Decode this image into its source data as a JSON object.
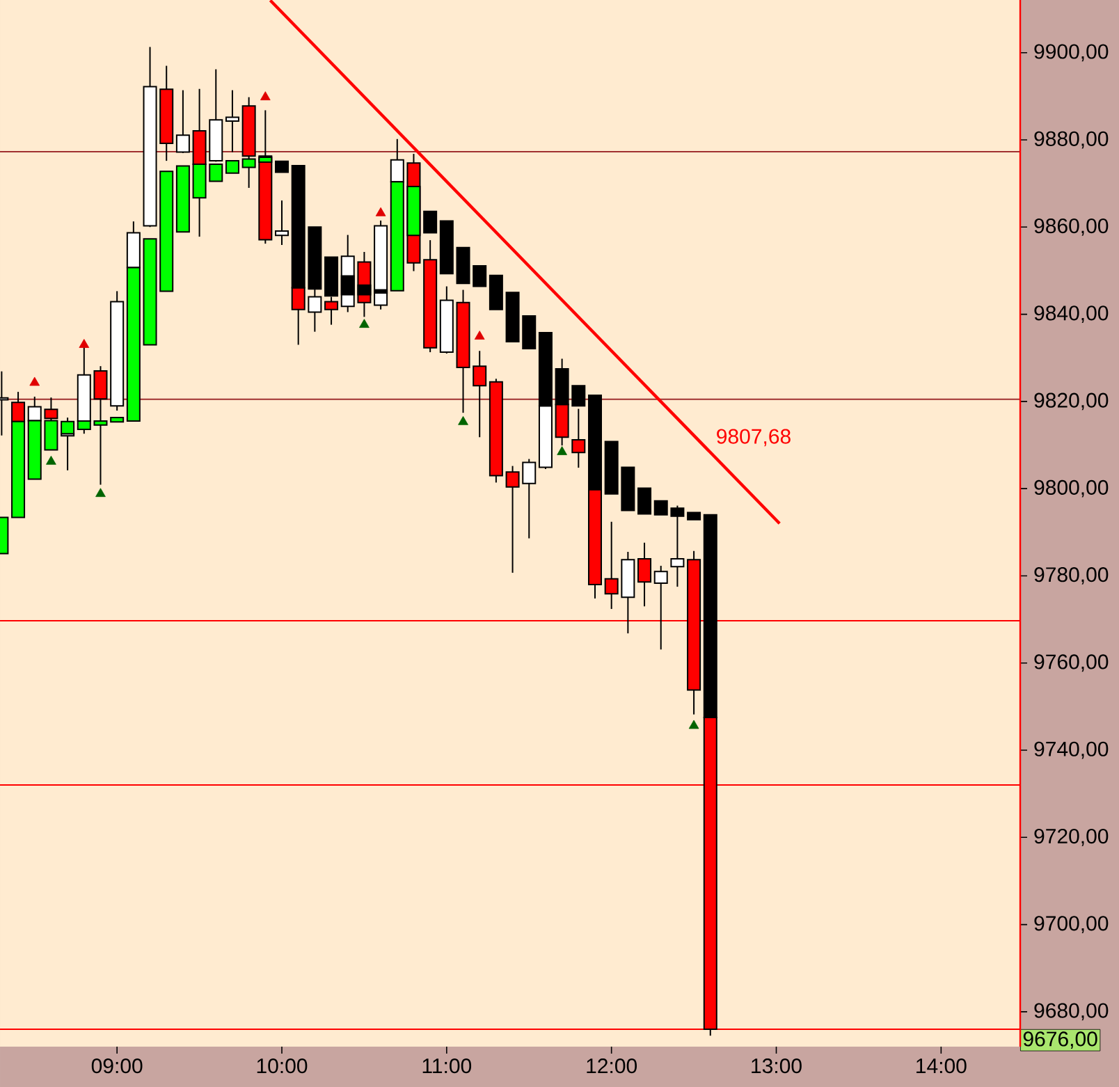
{
  "chart_data": {
    "type": "candlestick",
    "x": [
      8.3,
      8.4,
      8.5,
      8.6,
      8.7,
      8.8,
      8.9,
      9.0,
      9.1,
      9.2,
      9.3,
      9.4,
      9.5,
      9.6,
      9.7,
      9.8,
      9.9,
      10.0,
      10.1,
      10.2,
      10.3,
      10.4,
      10.5,
      10.6,
      10.7,
      10.8,
      10.9,
      11.0,
      11.1,
      11.2,
      11.3,
      11.4,
      11.5,
      11.6,
      11.7,
      11.8,
      11.9,
      12.0,
      12.1,
      12.2,
      12.3,
      12.4,
      12.5,
      12.6
    ],
    "xlim": [
      8.29,
      14.48
    ],
    "ylim": [
      9672,
      9912.1
    ],
    "xticks": [
      {
        "value": 9,
        "label": "09:00"
      },
      {
        "value": 10,
        "label": "10:00"
      },
      {
        "value": 11,
        "label": "11:00"
      },
      {
        "value": 12,
        "label": "12:00"
      },
      {
        "value": 13,
        "label": "13:00"
      },
      {
        "value": 14,
        "label": "14:00"
      }
    ],
    "yticks": [
      {
        "value": 9680,
        "label": "9680,00"
      },
      {
        "value": 9700,
        "label": "9700,00"
      },
      {
        "value": 9720,
        "label": "9720,00"
      },
      {
        "value": 9740,
        "label": "9740,00"
      },
      {
        "value": 9760,
        "label": "9760,00"
      },
      {
        "value": 9780,
        "label": "9780,00"
      },
      {
        "value": 9800,
        "label": "9800,00"
      },
      {
        "value": 9820,
        "label": "9820,00"
      },
      {
        "value": 9840,
        "label": "9840,00"
      },
      {
        "value": 9860,
        "label": "9860,00"
      },
      {
        "value": 9880,
        "label": "9880,00"
      },
      {
        "value": 9900,
        "label": "9900,00"
      }
    ],
    "series": [
      {
        "ohlc": [
          [
            9820.4,
            9826.9,
            9812.2,
            9820.8
          ],
          [
            9819.8,
            9822.2,
            9815.0,
            9815.4
          ],
          [
            9815.6,
            9821.1,
            9815.0,
            9818.8
          ],
          [
            9818.2,
            9820.9,
            9815.6,
            9816.1
          ],
          [
            9812.1,
            9816.3,
            9804.2,
            9812.6
          ],
          [
            9815.5,
            9832.5,
            9812.6,
            9826.1
          ],
          [
            9827.0,
            9828.1,
            9800.9,
            9820.6
          ],
          [
            9819.0,
            9845.3,
            9817.9,
            9842.9
          ],
          [
            9850.7,
            9861.3,
            9850.0,
            9858.7
          ],
          [
            9860.3,
            9901.3,
            9860.0,
            9892.2
          ],
          [
            9891.6,
            9897.0,
            9875.2,
            9879.2
          ],
          [
            9877.2,
            9891.4,
            9877.0,
            9881.1
          ],
          [
            9882.1,
            9891.7,
            9857.8,
            9874.4
          ],
          [
            9875.2,
            9896.2,
            9875.0,
            9884.6
          ],
          [
            9884.3,
            9891.4,
            9877.2,
            9885.2
          ],
          [
            9887.8,
            9889.8,
            9869.0,
            9876.3
          ],
          [
            9876.3,
            9886.8,
            9856.2,
            9857.1
          ],
          [
            9858.1,
            9866.1,
            9855.9,
            9859.1
          ],
          [
            9846.1,
            9846.1,
            9833.0,
            9841.1
          ],
          [
            9840.5,
            9846.0,
            9836.0,
            9844.0
          ],
          [
            9842.9,
            9844.0,
            9837.6,
            9841.1
          ],
          [
            9841.8,
            9858.2,
            9840.5,
            9853.3
          ],
          [
            9852.0,
            9854.3,
            9839.4,
            9842.7
          ],
          [
            9842.1,
            9861.5,
            9841.1,
            9860.3
          ],
          [
            9870.4,
            9880.2,
            9870.0,
            9875.4
          ],
          [
            9874.7,
            9876.8,
            9849.9,
            9851.8
          ],
          [
            9852.5,
            9857.0,
            9831.3,
            9832.3
          ],
          [
            9831.3,
            9846.4,
            9831.0,
            9843.2
          ],
          [
            9842.7,
            9845.6,
            9817.4,
            9827.8
          ],
          [
            9828.1,
            9831.6,
            9811.8,
            9823.6
          ],
          [
            9824.5,
            9825.2,
            9801.4,
            9803.0
          ],
          [
            9803.8,
            9805.2,
            9780.7,
            9800.4
          ],
          [
            9801.2,
            9806.8,
            9788.6,
            9806.0
          ],
          [
            9804.9,
            9820.0,
            9804.5,
            9819.0
          ],
          [
            9819.3,
            9829.8,
            9809.9,
            9811.8
          ],
          [
            9811.2,
            9818.3,
            9804.8,
            9808.3
          ],
          [
            9799.8,
            9799.8,
            9774.8,
            9778.0
          ],
          [
            9779.3,
            9792.4,
            9772.4,
            9775.9
          ],
          [
            9775.1,
            9785.5,
            9766.8,
            9783.7
          ],
          [
            9783.9,
            9787.6,
            9773.0,
            9778.6
          ],
          [
            9778.3,
            9782.3,
            9763.1,
            9781.0
          ],
          [
            9782.1,
            9796.1,
            9777.5,
            9783.9
          ],
          [
            9783.7,
            9785.7,
            9748.2,
            9753.8
          ],
          [
            9747.5,
            9747.5,
            9674.5,
            9676.0
          ]
        ],
        "colors": [
          "#ffffff",
          "#ff0000",
          "#ffffff",
          "#ff0000",
          "#ffffff",
          "#ffffff",
          "#ff0000",
          "#ffffff",
          "#ffffff",
          "#ffffff",
          "#ff0000",
          "#ffffff",
          "#ff0000",
          "#ffffff",
          "#ffffff",
          "#ff0000",
          "#ff0000",
          "#ffffff",
          "#ff0000",
          "#ffffff",
          "#ff0000",
          "#ffffff",
          "#ff0000",
          "#ffffff",
          "#ffffff",
          "#ff0000",
          "#ff0000",
          "#ffffff",
          "#ff0000",
          "#ff0000",
          "#ff0000",
          "#ff0000",
          "#ffffff",
          "#ffffff",
          "#ff0000",
          "#ff0000",
          "#ff0000",
          "#ff0000",
          "#ffffff",
          "#ff0000",
          "#ffffff",
          "#ffffff",
          "#ff0000",
          "#ff0000"
        ]
      },
      {
        "ohlc": [
          [
            9785.1,
            9793.4,
            9785.1,
            9793.4
          ],
          [
            9793.4,
            9815.4,
            9793.4,
            9815.4
          ],
          [
            9802.2,
            9815.6,
            9802.2,
            9815.6
          ],
          [
            9808.9,
            9815.6,
            9808.9,
            9815.6
          ],
          [
            9812.6,
            9815.4,
            9812.6,
            9815.4
          ],
          [
            9813.6,
            9815.5,
            9813.6,
            9815.5
          ],
          [
            9814.6,
            9815.5,
            9814.6,
            9815.5
          ],
          [
            9815.3,
            9816.3,
            9815.3,
            9816.3
          ],
          [
            9815.5,
            9850.7,
            9815.5,
            9850.7
          ],
          [
            9833.0,
            9857.3,
            9833.0,
            9857.3
          ],
          [
            9845.3,
            9872.8,
            9845.3,
            9872.8
          ],
          [
            9858.9,
            9874.0,
            9858.9,
            9874.0
          ],
          [
            9866.7,
            9874.4,
            9866.7,
            9874.4
          ],
          [
            9870.5,
            9874.4,
            9870.5,
            9874.4
          ],
          [
            9872.4,
            9875.2,
            9872.4,
            9875.2
          ],
          [
            9873.7,
            9875.6,
            9873.7,
            9875.6
          ],
          [
            9874.9,
            9876.0,
            9874.9,
            9876.0
          ],
          [
            9875.1,
            9875.1,
            9872.6,
            9872.6
          ],
          [
            9874.1,
            9874.1,
            9846.1,
            9846.1
          ],
          [
            9860.0,
            9860.0,
            9845.8,
            9845.8
          ],
          [
            9853.1,
            9853.1,
            9844.2,
            9844.2
          ],
          [
            9848.8,
            9848.8,
            9844.5,
            9844.5
          ],
          [
            9846.7,
            9846.7,
            9844.5,
            9844.5
          ],
          [
            9845.6,
            9845.6,
            9844.9,
            9844.9
          ],
          [
            9845.4,
            9870.4,
            9845.4,
            9870.4
          ],
          [
            9858.1,
            9869.3,
            9858.1,
            9869.3
          ],
          [
            9863.6,
            9863.6,
            9858.7,
            9858.7
          ],
          [
            9861.4,
            9861.4,
            9849.3,
            9849.3
          ],
          [
            9855.3,
            9855.3,
            9847.1,
            9847.1
          ],
          [
            9851.1,
            9851.1,
            9846.4,
            9846.4
          ],
          [
            9848.9,
            9848.9,
            9841.1,
            9841.1
          ],
          [
            9845.0,
            9845.0,
            9833.7,
            9833.7
          ],
          [
            9839.6,
            9839.6,
            9832.1,
            9832.1
          ],
          [
            9835.8,
            9835.8,
            9819.0,
            9819.0
          ],
          [
            9827.5,
            9827.5,
            9819.3,
            9819.3
          ],
          [
            9823.6,
            9823.6,
            9819.0,
            9819.0
          ],
          [
            9821.4,
            9821.4,
            9799.8,
            9799.8
          ],
          [
            9810.8,
            9810.8,
            9798.8,
            9798.8
          ],
          [
            9804.9,
            9804.9,
            9795.0,
            9795.0
          ],
          [
            9800.1,
            9800.1,
            9794.2,
            9794.2
          ],
          [
            9797.2,
            9797.2,
            9794.0,
            9794.0
          ],
          [
            9795.5,
            9795.5,
            9793.7,
            9793.7
          ],
          [
            9794.5,
            9794.5,
            9792.9,
            9792.9
          ],
          [
            9794.0,
            9794.0,
            9747.5,
            9747.5
          ]
        ],
        "colors": [
          "#00ff00",
          "#00ff00",
          "#00ff00",
          "#00ff00",
          "#00ff00",
          "#00ff00",
          "#00ff00",
          "#00ff00",
          "#00ff00",
          "#00ff00",
          "#00ff00",
          "#00ff00",
          "#00ff00",
          "#00ff00",
          "#00ff00",
          "#00ff00",
          "#00ff00",
          "#000000",
          "#000000",
          "#000000",
          "#000000",
          "#000000",
          "#000000",
          "#000000",
          "#00ff00",
          "#00ff00",
          "#000000",
          "#000000",
          "#000000",
          "#000000",
          "#000000",
          "#000000",
          "#000000",
          "#000000",
          "#000000",
          "#000000",
          "#000000",
          "#000000",
          "#000000",
          "#000000",
          "#000000",
          "#000000",
          "#000000",
          "#000000"
        ]
      },
      {
        "type": "line",
        "x": [
          9.93,
          13.02
        ],
        "values": [
          9912.0,
          9792.0
        ],
        "color": "#ff0000"
      },
      {
        "type": "scatter",
        "x": [
          8.5,
          8.8,
          9.9,
          10.6,
          11.2
        ],
        "values": [
          9824.3,
          9833.0,
          9889.8,
          9863.2,
          9834.9
        ],
        "color": "#e00000",
        "marker": "triangle"
      },
      {
        "type": "scatter",
        "x": [
          8.6,
          8.9,
          10.5,
          11.1,
          11.7,
          12.5
        ],
        "values": [
          9806.2,
          9798.8,
          9837.6,
          9815.3,
          9808.4,
          9745.6
        ],
        "color": "#006400",
        "marker": "triangle"
      }
    ],
    "ref_lines": [
      {
        "axis": "y",
        "value": 9877.3,
        "color": "#a03030"
      },
      {
        "axis": "y",
        "value": 9820.5,
        "color": "#a03030"
      },
      {
        "axis": "y",
        "value": 9769.7,
        "color": "#ff0000"
      },
      {
        "axis": "y",
        "value": 9732.0,
        "color": "#ff0000"
      },
      {
        "axis": "y",
        "value": 9676.0,
        "color": "#ff0000",
        "label": "9676,00"
      }
    ],
    "annotations": [
      "9807,68"
    ]
  }
}
